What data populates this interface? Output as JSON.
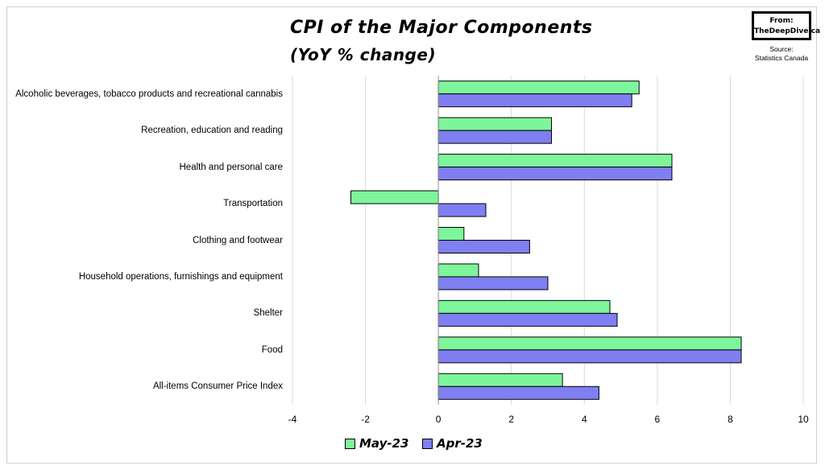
{
  "chart_data": {
    "type": "bar",
    "orientation": "horizontal",
    "title": "CPI of the Major Components",
    "subtitle": "(YoY % change)",
    "categories": [
      "Alcoholic beverages, tobacco products and recreational cannabis",
      "Recreation, education and reading",
      "Health and personal care",
      "Transportation",
      "Clothing and footwear",
      "Household operations, furnishings and equipment",
      "Shelter",
      "Food",
      "All-items Consumer Price Index"
    ],
    "series": [
      {
        "name": "May-23",
        "color": "#7ef59a",
        "values": [
          5.5,
          3.1,
          6.4,
          -2.4,
          0.7,
          1.1,
          4.7,
          8.3,
          3.4
        ]
      },
      {
        "name": "Apr-23",
        "color": "#7f7ff2",
        "values": [
          5.3,
          3.1,
          6.4,
          1.3,
          2.5,
          3.0,
          4.9,
          8.3,
          4.4
        ]
      }
    ],
    "xlim": [
      -4,
      10
    ],
    "xticks": [
      "-4",
      "-2",
      "0",
      "2",
      "4",
      "6",
      "8",
      "10"
    ],
    "xtick_values": [
      -4,
      -2,
      0,
      2,
      4,
      6,
      8,
      10
    ],
    "grid": "vertical",
    "legend_position": "bottom-center"
  },
  "branding": {
    "from_label": "From:",
    "site": "TheDeepDive.ca",
    "source_label": "Source:",
    "source_name": "Statistics Canada"
  }
}
